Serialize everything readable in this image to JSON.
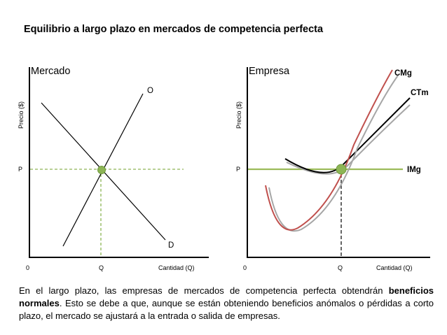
{
  "title": "Equilibrio a largo plazo en mercados de competencia perfecta",
  "market_panel": {
    "title": "Mercado",
    "y_axis_label": "Precio ($)",
    "x_axis_label": "Cantidad (Q)",
    "origin_label": "0",
    "price_label": "P",
    "quantity_label": "Q",
    "supply_label": "O",
    "demand_label": "D"
  },
  "firm_panel": {
    "title": "Empresa",
    "y_axis_label": "Precio ($)",
    "x_axis_label": "Cantidad (Q)",
    "origin_label": "0",
    "price_label": "P",
    "quantity_label": "Q",
    "marginal_cost_label": "CMg",
    "average_cost_label": "CTm",
    "marginal_revenue_label": "IMg"
  },
  "caption": {
    "part1": "En el largo plazo, las empresas de mercados de competencia perfecta obtendrán ",
    "bold": "beneficios normales",
    "part2": ". Esto se debe a que, aunque se están obteniendo beneficios anómalos o pérdidas a corto plazo, el mercado se ajustará a la entrada o salida de empresas."
  },
  "colors": {
    "equilibrium_point": "#8db555",
    "marginal_revenue_line": "#9bbb59",
    "marginal_cost_curve": "#c0504d",
    "shadow_curve": "#a6a6a6",
    "dashed_guide": "#8db555"
  }
}
